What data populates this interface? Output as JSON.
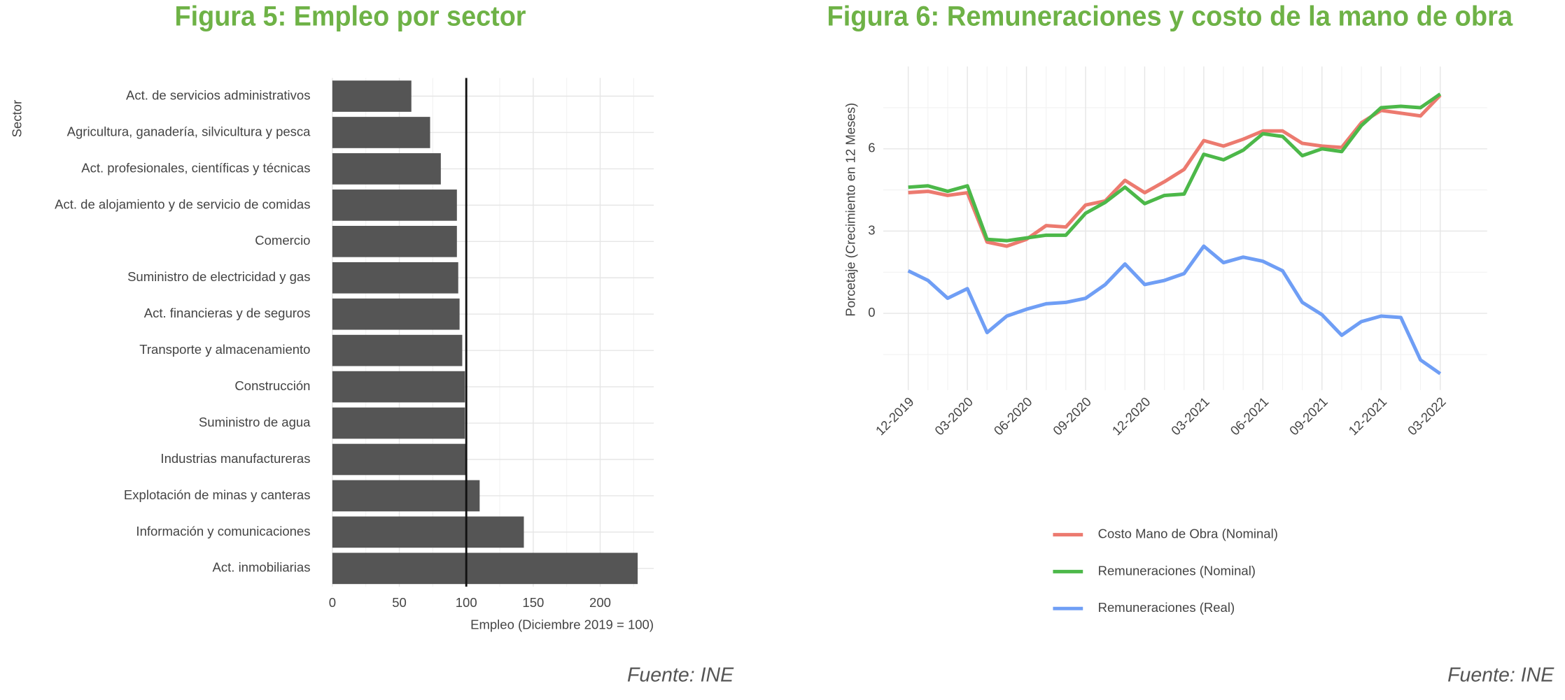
{
  "chart_data": [
    {
      "type": "barh",
      "title": "Figura 5: Empleo por sector",
      "y_label": "Sector",
      "x_label": "Empleo (Diciembre 2019 = 100)",
      "source": "Fuente: INE",
      "categories": [
        "Act. de servicios administrativos",
        "Agricultura, ganadería, silvicultura y pesca",
        "Act. profesionales, científicas y técnicas",
        "Act. de alojamiento y de servicio de comidas",
        "Comercio",
        "Suministro de electricidad y gas",
        "Act. financieras y de seguros",
        "Transporte y almacenamiento",
        "Construcción",
        "Suministro de agua",
        "Industrias manufactureras",
        "Explotación de minas y canteras",
        "Información y comunicaciones",
        "Act. inmobiliarias"
      ],
      "values": [
        59,
        73,
        81,
        93,
        93,
        94,
        95,
        97,
        99,
        99,
        100,
        110,
        143,
        228
      ],
      "color": "#555555",
      "reference_line": 100,
      "xlim": [
        0,
        240
      ],
      "xticks": [
        0,
        50,
        100,
        150,
        200
      ],
      "grid": true
    },
    {
      "type": "line",
      "title": "Figura 6: Remuneraciones y costo de la mano de obra",
      "y_label": "Porcetaje (Crecimiento en 12 Meses)",
      "source": "Fuente: INE",
      "categories": [
        "12-2019",
        null,
        null,
        "03-2020",
        null,
        null,
        "06-2020",
        null,
        null,
        "09-2020",
        null,
        null,
        "12-2020",
        null,
        null,
        "03-2021",
        null,
        null,
        "06-2021",
        null,
        null,
        "09-2021",
        null,
        null,
        "12-2021",
        null,
        null,
        "03-2022"
      ],
      "series": [
        {
          "name": "Costo Mano de Obra (Nominal)",
          "color": "#ec7a6f",
          "values": [
            4.4,
            4.45,
            4.3,
            4.4,
            2.6,
            2.45,
            2.7,
            3.2,
            3.15,
            3.95,
            4.1,
            4.85,
            4.4,
            4.8,
            5.25,
            6.3,
            6.1,
            6.35,
            6.65,
            6.65,
            6.2,
            6.1,
            6.05,
            6.95,
            7.4,
            7.3,
            7.2,
            7.95
          ]
        },
        {
          "name": "Remuneraciones (Nominal)",
          "color": "#4cb849",
          "values": [
            4.6,
            4.65,
            4.45,
            4.65,
            2.7,
            2.65,
            2.75,
            2.85,
            2.85,
            3.65,
            4.05,
            4.6,
            4.0,
            4.3,
            4.35,
            5.8,
            5.6,
            5.95,
            6.55,
            6.45,
            5.75,
            6.0,
            5.9,
            6.85,
            7.5,
            7.55,
            7.5,
            8.0
          ]
        },
        {
          "name": "Remuneraciones (Real)",
          "color": "#6f9ef5",
          "values": [
            1.55,
            1.2,
            0.55,
            0.9,
            -0.7,
            -0.1,
            0.15,
            0.35,
            0.4,
            0.55,
            1.05,
            1.8,
            1.05,
            1.2,
            1.45,
            2.45,
            1.85,
            2.05,
            1.9,
            1.55,
            0.4,
            -0.05,
            -0.8,
            -0.3,
            -0.1,
            -0.15,
            -1.7,
            -2.2
          ]
        }
      ],
      "ylim": [
        -2.8,
        9
      ],
      "yticks": [
        0,
        3,
        6
      ],
      "grid": true,
      "legend": "bottom"
    }
  ]
}
